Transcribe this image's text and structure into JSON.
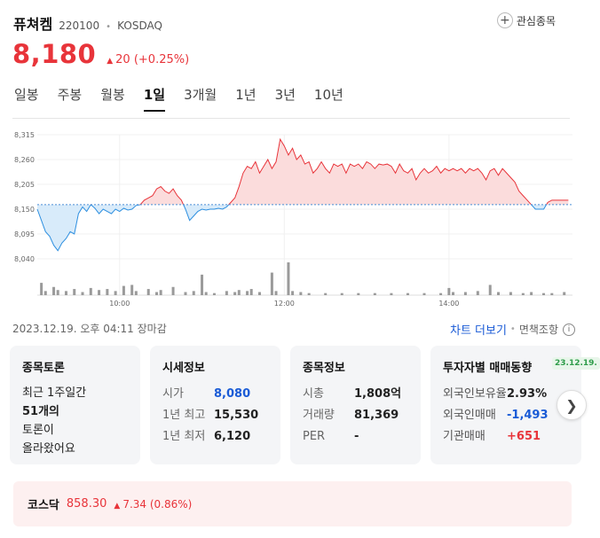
{
  "stock": {
    "name": "퓨쳐켐",
    "code": "220100",
    "market": "KOSDAQ",
    "watchlist_label": "관심종목",
    "price": "8,180",
    "change": "20 (+0.25%)",
    "up_color": "#e8343a",
    "down_color": "#2d8fe0"
  },
  "tabs": [
    {
      "label": "일봉",
      "active": false
    },
    {
      "label": "주봉",
      "active": false
    },
    {
      "label": "월봉",
      "active": false
    },
    {
      "label": "1일",
      "active": true
    },
    {
      "label": "3개월",
      "active": false
    },
    {
      "label": "1년",
      "active": false
    },
    {
      "label": "3년",
      "active": false
    },
    {
      "label": "10년",
      "active": false
    }
  ],
  "chart_data": {
    "type": "area",
    "baseline": 8160,
    "ylim": [
      8040,
      8315
    ],
    "y_ticks": [
      "8,315",
      "8,260",
      "8,205",
      "8,150",
      "8,095",
      "8,040"
    ],
    "y_tick_values": [
      8315,
      8260,
      8205,
      8150,
      8095,
      8040
    ],
    "x_ticks": [
      "10:00",
      "12:00",
      "14:00"
    ],
    "x_tick_times": [
      10,
      12,
      14
    ],
    "x_range": [
      9.0,
      15.5
    ],
    "series": [
      {
        "values": [
          [
            9.0,
            8150
          ],
          [
            9.05,
            8125
          ],
          [
            9.1,
            8100
          ],
          [
            9.15,
            8090
          ],
          [
            9.2,
            8070
          ],
          [
            9.25,
            8058
          ],
          [
            9.3,
            8075
          ],
          [
            9.35,
            8085
          ],
          [
            9.4,
            8100
          ],
          [
            9.45,
            8095
          ],
          [
            9.5,
            8140
          ],
          [
            9.55,
            8155
          ],
          [
            9.6,
            8145
          ],
          [
            9.65,
            8160
          ],
          [
            9.7,
            8152
          ],
          [
            9.75,
            8140
          ],
          [
            9.8,
            8150
          ],
          [
            9.85,
            8145
          ],
          [
            9.9,
            8140
          ],
          [
            9.95,
            8150
          ],
          [
            10.0,
            8145
          ],
          [
            10.05,
            8152
          ],
          [
            10.1,
            8148
          ],
          [
            10.15,
            8150
          ],
          [
            10.2,
            8158
          ],
          [
            10.25,
            8160
          ],
          [
            10.3,
            8170
          ],
          [
            10.35,
            8175
          ],
          [
            10.4,
            8180
          ],
          [
            10.45,
            8195
          ],
          [
            10.5,
            8200
          ],
          [
            10.55,
            8190
          ],
          [
            10.6,
            8185
          ],
          [
            10.65,
            8195
          ],
          [
            10.7,
            8180
          ],
          [
            10.75,
            8170
          ],
          [
            10.8,
            8150
          ],
          [
            10.85,
            8125
          ],
          [
            10.9,
            8135
          ],
          [
            10.95,
            8145
          ],
          [
            11.0,
            8150
          ],
          [
            11.05,
            8148
          ],
          [
            11.1,
            8150
          ],
          [
            11.15,
            8150
          ],
          [
            11.2,
            8152
          ],
          [
            11.25,
            8150
          ],
          [
            11.3,
            8155
          ],
          [
            11.35,
            8165
          ],
          [
            11.4,
            8175
          ],
          [
            11.45,
            8200
          ],
          [
            11.5,
            8230
          ],
          [
            11.55,
            8245
          ],
          [
            11.6,
            8240
          ],
          [
            11.65,
            8255
          ],
          [
            11.7,
            8230
          ],
          [
            11.75,
            8245
          ],
          [
            11.8,
            8260
          ],
          [
            11.85,
            8240
          ],
          [
            11.9,
            8255
          ],
          [
            11.95,
            8305
          ],
          [
            12.0,
            8290
          ],
          [
            12.05,
            8270
          ],
          [
            12.1,
            8285
          ],
          [
            12.15,
            8260
          ],
          [
            12.2,
            8270
          ],
          [
            12.25,
            8250
          ],
          [
            12.3,
            8255
          ],
          [
            12.35,
            8230
          ],
          [
            12.4,
            8240
          ],
          [
            12.45,
            8255
          ],
          [
            12.5,
            8240
          ],
          [
            12.55,
            8230
          ],
          [
            12.6,
            8250
          ],
          [
            12.65,
            8245
          ],
          [
            12.7,
            8250
          ],
          [
            12.75,
            8230
          ],
          [
            12.8,
            8250
          ],
          [
            12.85,
            8245
          ],
          [
            12.9,
            8250
          ],
          [
            12.95,
            8240
          ],
          [
            13.0,
            8255
          ],
          [
            13.05,
            8250
          ],
          [
            13.1,
            8240
          ],
          [
            13.15,
            8250
          ],
          [
            13.2,
            8248
          ],
          [
            13.25,
            8250
          ],
          [
            13.3,
            8245
          ],
          [
            13.35,
            8230
          ],
          [
            13.4,
            8250
          ],
          [
            13.45,
            8235
          ],
          [
            13.5,
            8230
          ],
          [
            13.55,
            8240
          ],
          [
            13.6,
            8215
          ],
          [
            13.65,
            8230
          ],
          [
            13.7,
            8240
          ],
          [
            13.75,
            8230
          ],
          [
            13.8,
            8235
          ],
          [
            13.85,
            8245
          ],
          [
            13.9,
            8230
          ],
          [
            13.95,
            8240
          ],
          [
            14.0,
            8235
          ],
          [
            14.05,
            8240
          ],
          [
            14.1,
            8235
          ],
          [
            14.15,
            8240
          ],
          [
            14.2,
            8230
          ],
          [
            14.25,
            8240
          ],
          [
            14.3,
            8235
          ],
          [
            14.35,
            8240
          ],
          [
            14.4,
            8230
          ],
          [
            14.45,
            8215
          ],
          [
            14.5,
            8235
          ],
          [
            14.55,
            8240
          ],
          [
            14.6,
            8225
          ],
          [
            14.65,
            8240
          ],
          [
            14.7,
            8230
          ],
          [
            14.75,
            8220
          ],
          [
            14.8,
            8210
          ],
          [
            14.85,
            8190
          ],
          [
            14.9,
            8180
          ],
          [
            14.95,
            8170
          ],
          [
            15.0,
            8160
          ],
          [
            15.05,
            8150
          ],
          [
            15.1,
            8150
          ],
          [
            15.15,
            8150
          ],
          [
            15.2,
            8165
          ],
          [
            15.25,
            8170
          ],
          [
            15.3,
            8170
          ],
          [
            15.35,
            8170
          ],
          [
            15.4,
            8170
          ],
          [
            15.45,
            8170
          ]
        ]
      }
    ],
    "volume": [
      [
        9.05,
        12
      ],
      [
        9.1,
        4
      ],
      [
        9.2,
        8
      ],
      [
        9.25,
        5
      ],
      [
        9.35,
        4
      ],
      [
        9.45,
        6
      ],
      [
        9.55,
        3
      ],
      [
        9.65,
        7
      ],
      [
        9.75,
        5
      ],
      [
        9.85,
        6
      ],
      [
        9.95,
        4
      ],
      [
        10.05,
        9
      ],
      [
        10.15,
        10
      ],
      [
        10.2,
        4
      ],
      [
        10.35,
        6
      ],
      [
        10.45,
        3
      ],
      [
        10.5,
        5
      ],
      [
        10.65,
        8
      ],
      [
        10.8,
        3
      ],
      [
        10.9,
        4
      ],
      [
        11.0,
        20
      ],
      [
        11.05,
        3
      ],
      [
        11.15,
        2
      ],
      [
        11.3,
        4
      ],
      [
        11.4,
        3
      ],
      [
        11.45,
        5
      ],
      [
        11.55,
        4
      ],
      [
        11.6,
        6
      ],
      [
        11.7,
        3
      ],
      [
        11.85,
        22
      ],
      [
        11.9,
        4
      ],
      [
        12.05,
        32
      ],
      [
        12.1,
        4
      ],
      [
        12.2,
        3
      ],
      [
        12.3,
        2
      ],
      [
        12.5,
        2
      ],
      [
        12.7,
        2
      ],
      [
        12.9,
        2
      ],
      [
        13.1,
        2
      ],
      [
        13.3,
        2
      ],
      [
        13.5,
        2
      ],
      [
        13.7,
        2
      ],
      [
        13.9,
        2
      ],
      [
        14.0,
        7
      ],
      [
        14.05,
        3
      ],
      [
        14.2,
        3
      ],
      [
        14.35,
        4
      ],
      [
        14.5,
        10
      ],
      [
        14.6,
        3
      ],
      [
        14.75,
        3
      ],
      [
        14.9,
        2
      ],
      [
        15.0,
        3
      ],
      [
        15.15,
        2
      ],
      [
        15.25,
        2
      ],
      [
        15.4,
        3
      ]
    ]
  },
  "footer": {
    "timestamp": "2023.12.19. 오후 04:11 장마감",
    "more_chart": "차트 더보기",
    "disclaimer": "면책조항"
  },
  "cards": {
    "discussion": {
      "title": "종목토론",
      "line1": "최근 1주일간",
      "count": "51개의",
      "line3": "토론이",
      "line4": "올라왔어요"
    },
    "market_info": {
      "title": "시세정보",
      "rows": [
        {
          "k": "시가",
          "v": "8,080"
        },
        {
          "k": "1년 최고",
          "v": "15,530"
        },
        {
          "k": "1년 최저",
          "v": "6,120"
        }
      ]
    },
    "stock_info": {
      "title": "종목정보",
      "rows": [
        {
          "k": "시총",
          "v": "1,808억"
        },
        {
          "k": "거래량",
          "v": "81,369"
        },
        {
          "k": "PER",
          "v": "-"
        }
      ]
    },
    "investor": {
      "title": "투자자별 매매동향",
      "date": "23.12.19.",
      "rows": [
        {
          "k": "외국인보유율",
          "v": "2.93%"
        },
        {
          "k": "외국인매매",
          "v": "-1,493"
        },
        {
          "k": "기관매매",
          "v": "+651"
        }
      ]
    }
  },
  "index": {
    "name": "코스닥",
    "value": "858.30",
    "change": "7.34 (0.86%)"
  }
}
